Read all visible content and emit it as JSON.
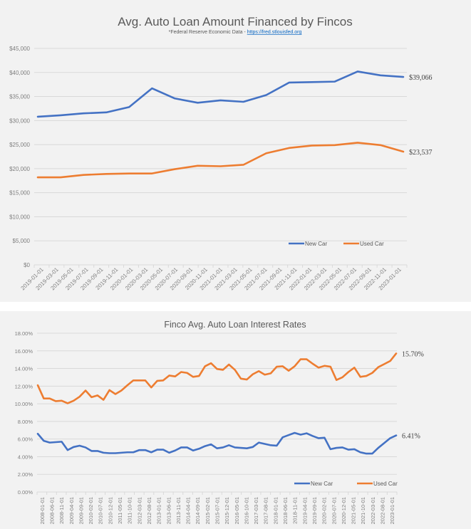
{
  "chart_data": [
    {
      "type": "line",
      "title": "Avg. Auto Loan Amount Financed by Fincos",
      "subtitle_text": "*Federal Reserve Economic Data - ",
      "subtitle_link": "https://fred.stlouisfed.org",
      "xlabel": "",
      "ylabel": "",
      "ylim": [
        0,
        45000
      ],
      "yticks": [
        0,
        5000,
        10000,
        15000,
        20000,
        25000,
        30000,
        35000,
        40000,
        45000
      ],
      "ytick_labels": [
        "$0",
        "$5,000",
        "$10,000",
        "$15,000",
        "$20,000",
        "$25,000",
        "$30,000",
        "$35,000",
        "$40,000",
        "$45,000"
      ],
      "xtick_labels": [
        "2019-01-01",
        "2019-03-01",
        "2019-05-01",
        "2019-07-01",
        "2019-09-01",
        "2019-11-01",
        "2020-01-01",
        "2020-03-01",
        "2020-05-01",
        "2020-07-01",
        "2020-09-01",
        "2020-11-01",
        "2021-01-01",
        "2021-03-01",
        "2021-05-01",
        "2021-07-01",
        "2021-09-01",
        "2021-11-01",
        "2022-01-01",
        "2022-03-01",
        "2022-05-01",
        "2022-07-01",
        "2022-09-01",
        "2022-11-01",
        "2023-01-01"
      ],
      "x": [
        "2019-01",
        "2019-04",
        "2019-07",
        "2019-10",
        "2020-01",
        "2020-04",
        "2020-07",
        "2020-10",
        "2021-01",
        "2021-04",
        "2021-07",
        "2021-10",
        "2022-01",
        "2022-04",
        "2022-07",
        "2022-10",
        "2023-01"
      ],
      "grid": true,
      "legend_position": "bottom-right",
      "series": [
        {
          "name": "New Car",
          "color": "#4472c4",
          "end_label": "$39,066",
          "values": [
            30800,
            31100,
            31500,
            31700,
            32800,
            36700,
            34600,
            33700,
            34200,
            33900,
            35300,
            37900,
            38000,
            38100,
            40200,
            39400,
            39066
          ]
        },
        {
          "name": "Used Car",
          "color": "#ed7d31",
          "end_label": "$23,537",
          "values": [
            18200,
            18200,
            18700,
            18900,
            19000,
            19000,
            19900,
            20600,
            20500,
            20800,
            23200,
            24300,
            24800,
            24900,
            25400,
            24900,
            23537
          ]
        }
      ]
    },
    {
      "type": "line",
      "title": "Finco Avg. Auto Loan Interest Rates",
      "xlabel": "",
      "ylabel": "",
      "ylim": [
        0,
        18
      ],
      "yticks": [
        0,
        2,
        4,
        6,
        8,
        10,
        12,
        14,
        16,
        18
      ],
      "ytick_labels": [
        "0.00%",
        "2.00%",
        "4.00%",
        "6.00%",
        "8.00%",
        "10.00%",
        "12.00%",
        "14.00%",
        "16.00%",
        "18.00%"
      ],
      "xtick_labels": [
        "2008-01-01",
        "2008-06-01",
        "2008-11-01",
        "2009-04-01",
        "2009-09-01",
        "2010-02-01",
        "2010-07-01",
        "2010-12-01",
        "2011-05-01",
        "2011-10-01",
        "2012-03-01",
        "2012-08-01",
        "2013-01-01",
        "2013-06-01",
        "2013-11-01",
        "2014-04-01",
        "2014-09-01",
        "2015-02-01",
        "2015-07-01",
        "2015-12-01",
        "2016-05-01",
        "2016-10-01",
        "2017-03-01",
        "2017-08-01",
        "2018-01-01",
        "2018-06-01",
        "2018-11-01",
        "2019-04-01",
        "2019-09-01",
        "2020-02-01",
        "2020-07-01",
        "2020-12-01",
        "2021-05-01",
        "2021-10-01",
        "2022-03-01",
        "2022-08-01",
        "2023-01-01"
      ],
      "x_start": "2008-01",
      "x_end": "2023-01",
      "x_frequency": "quarterly",
      "grid": true,
      "legend_position": "bottom-right",
      "series": [
        {
          "name": "New Car",
          "color": "#4472c4",
          "end_label": "6.41%",
          "values": [
            6.6,
            5.8,
            5.6,
            5.65,
            5.7,
            4.75,
            5.1,
            5.25,
            5.05,
            4.65,
            4.65,
            4.45,
            4.4,
            4.4,
            4.45,
            4.5,
            4.5,
            4.75,
            4.75,
            4.5,
            4.8,
            4.8,
            4.45,
            4.7,
            5.05,
            5.05,
            4.7,
            4.9,
            5.2,
            5.4,
            4.95,
            5.05,
            5.3,
            5.05,
            5.0,
            4.95,
            5.1,
            5.6,
            5.45,
            5.3,
            5.25,
            6.2,
            6.45,
            6.7,
            6.5,
            6.65,
            6.35,
            6.1,
            6.15,
            4.85,
            5.0,
            5.05,
            4.8,
            4.85,
            4.5,
            4.35,
            4.35,
            5.0,
            5.55,
            6.1,
            6.41
          ]
        },
        {
          "name": "Used Car",
          "color": "#ed7d31",
          "end_label": "15.70%",
          "values": [
            12.1,
            10.6,
            10.6,
            10.3,
            10.35,
            10.05,
            10.35,
            10.8,
            11.5,
            10.75,
            10.95,
            10.45,
            11.55,
            11.1,
            11.5,
            12.1,
            12.65,
            12.65,
            12.65,
            11.85,
            12.6,
            12.65,
            13.2,
            13.1,
            13.6,
            13.5,
            13.05,
            13.15,
            14.25,
            14.6,
            13.95,
            13.85,
            14.45,
            13.85,
            12.85,
            12.75,
            13.35,
            13.7,
            13.3,
            13.45,
            14.2,
            14.25,
            13.75,
            14.25,
            15.05,
            15.05,
            14.55,
            14.1,
            14.3,
            14.2,
            12.7,
            13.0,
            13.6,
            14.1,
            13.05,
            13.15,
            13.5,
            14.15,
            14.5,
            14.85,
            15.7
          ]
        }
      ]
    }
  ]
}
